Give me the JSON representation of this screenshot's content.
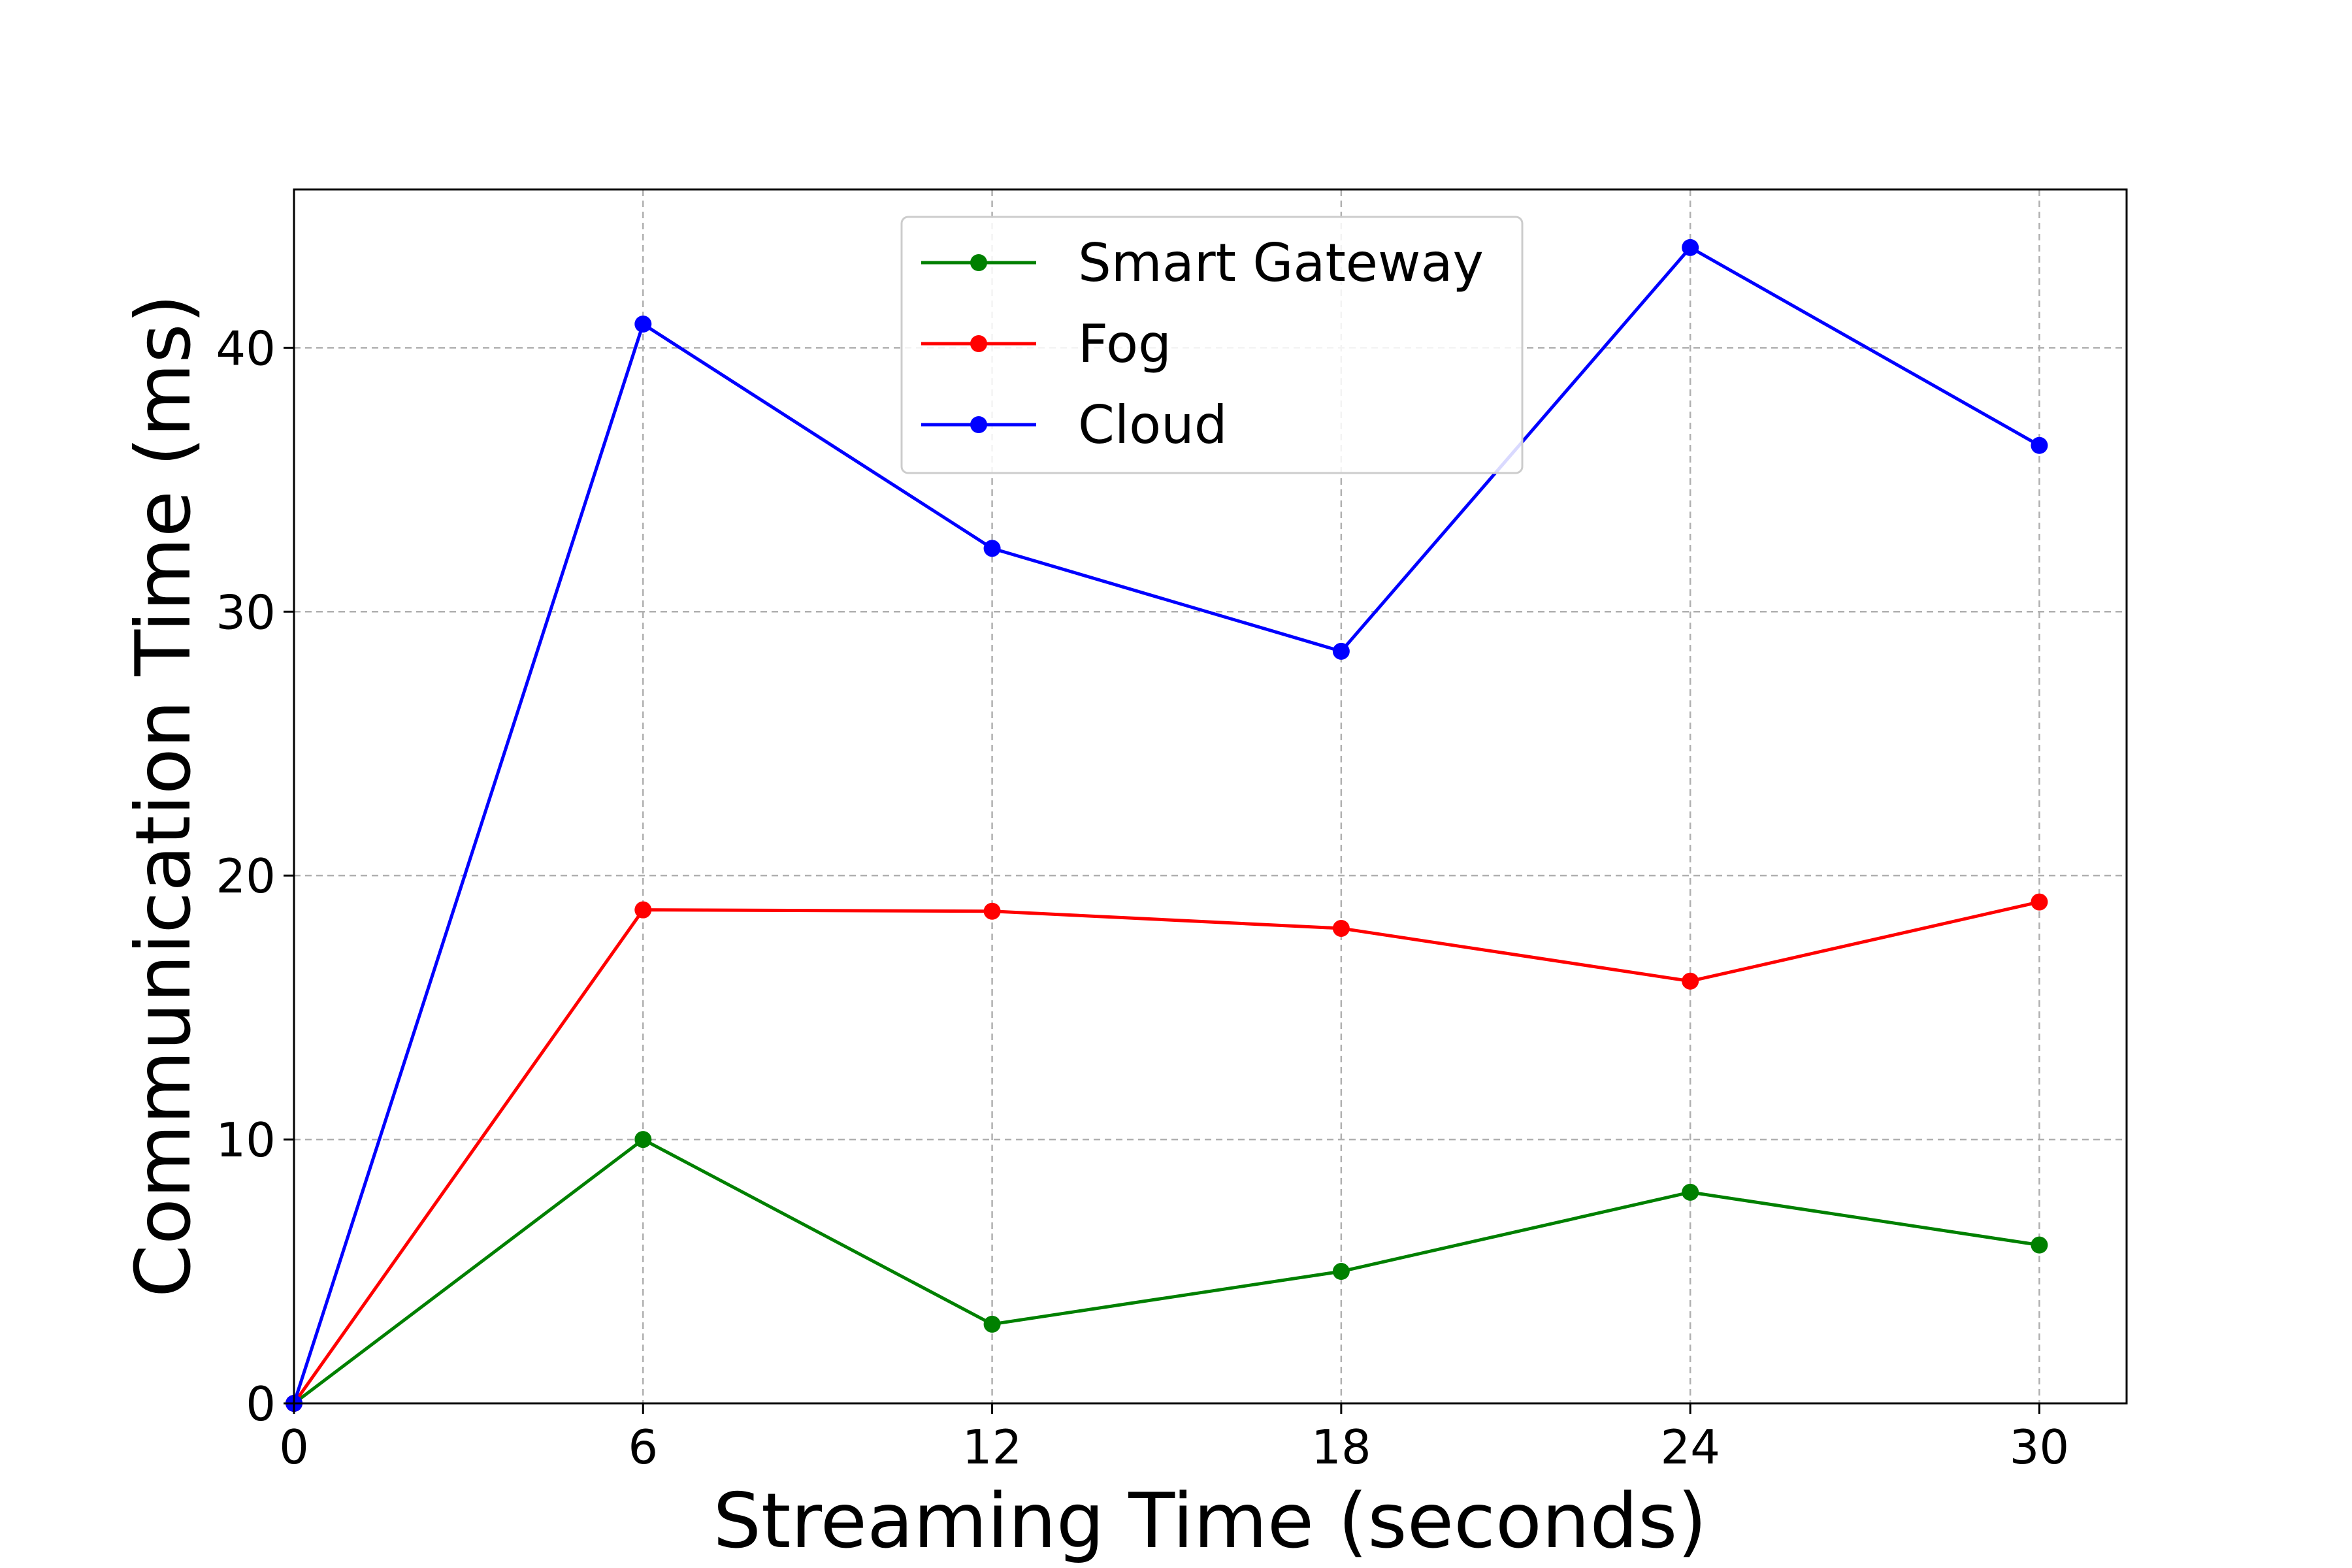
{
  "chart_data": {
    "type": "line",
    "xlabel": "Streaming Time (seconds)",
    "ylabel": "Communication Time (ms)",
    "x": [
      0,
      6,
      12,
      18,
      24,
      30
    ],
    "xticks": [
      "0",
      "6",
      "12",
      "18",
      "24",
      "30"
    ],
    "yticks": [
      "0",
      "10",
      "20",
      "30",
      "40"
    ],
    "xlim": [
      0,
      31.5
    ],
    "ylim": [
      0,
      46
    ],
    "grid": true,
    "legend_position": "top-center",
    "series": [
      {
        "name": "Smart Gateway",
        "color": "#008000",
        "values": [
          0,
          10,
          3,
          5,
          8,
          6
        ]
      },
      {
        "name": "Fog",
        "color": "#ff0000",
        "values": [
          0,
          18.7,
          18.65,
          18.0,
          16.0,
          19.0
        ]
      },
      {
        "name": "Cloud",
        "color": "#0000ff",
        "values": [
          0,
          40.9,
          32.4,
          28.5,
          43.8,
          36.3
        ]
      }
    ]
  }
}
